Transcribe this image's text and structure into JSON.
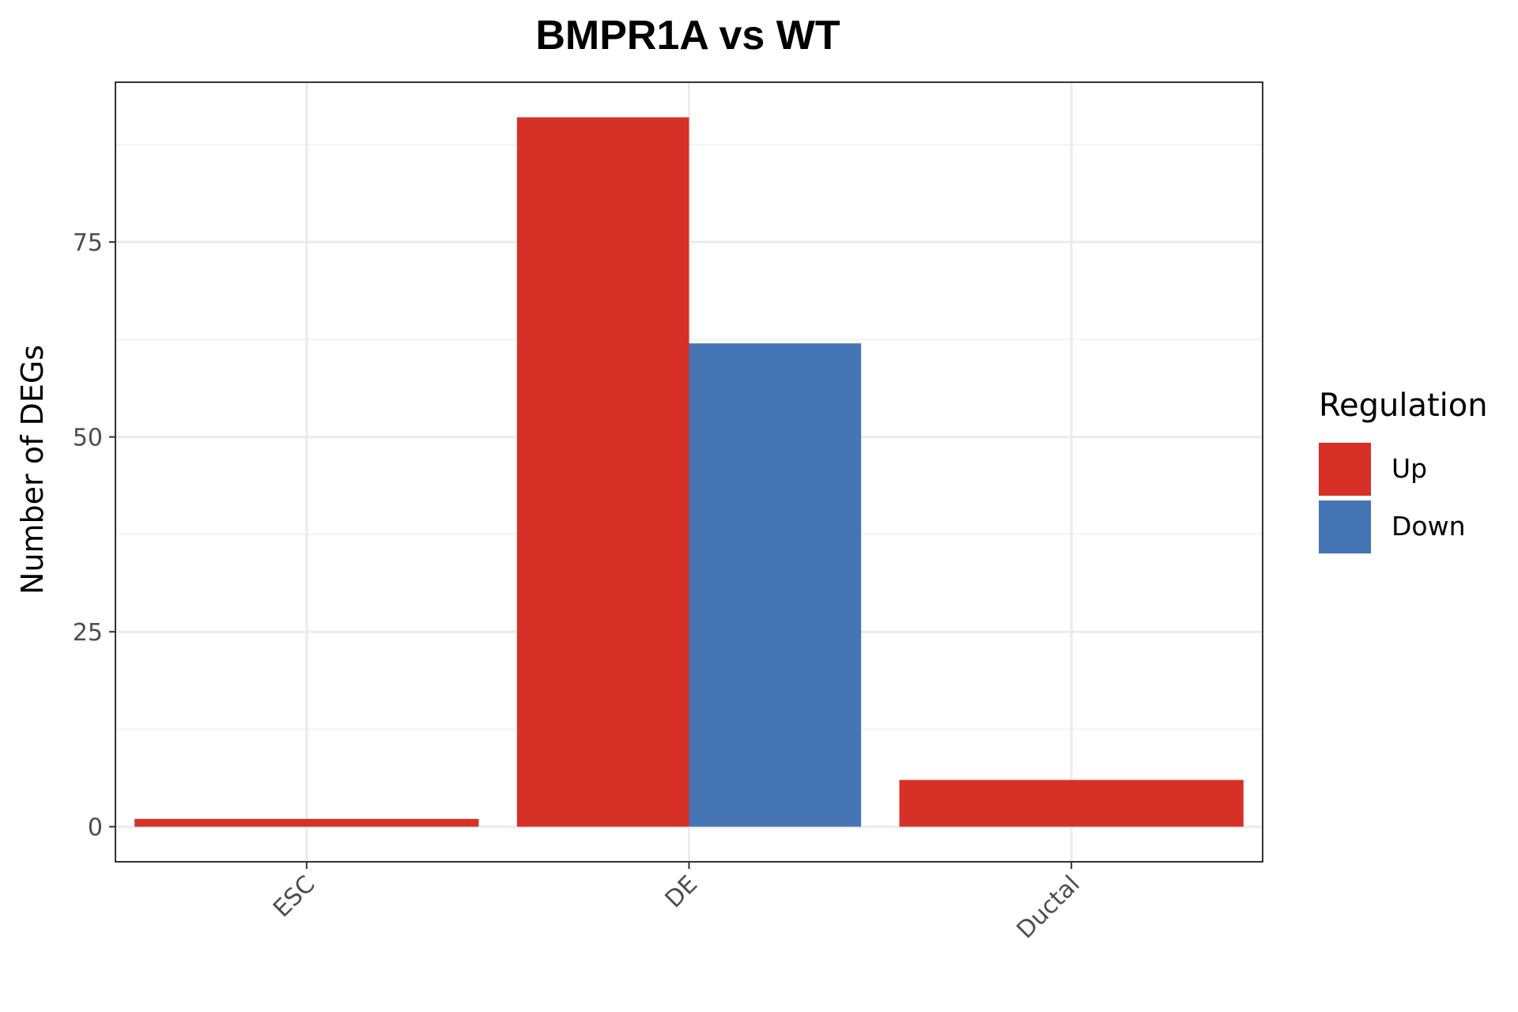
{
  "chart_data": {
    "type": "bar",
    "title": "BMPR1A vs WT",
    "xlabel": "",
    "ylabel": "Number of DEGs",
    "categories": [
      "ESC",
      "DE",
      "Ductal"
    ],
    "series": [
      {
        "name": "Up",
        "color": "#D73027",
        "values": [
          1,
          91,
          6
        ]
      },
      {
        "name": "Down",
        "color": "#4575B4",
        "values": [
          0,
          62,
          0
        ]
      }
    ],
    "ylim": [
      -4.5,
      95.5
    ],
    "yticks": [
      0,
      25,
      50,
      75
    ],
    "ytick_labels": [
      "0",
      "25",
      "50",
      "75"
    ],
    "grid": true,
    "legend": {
      "title": "Regulation",
      "position": "right"
    }
  }
}
